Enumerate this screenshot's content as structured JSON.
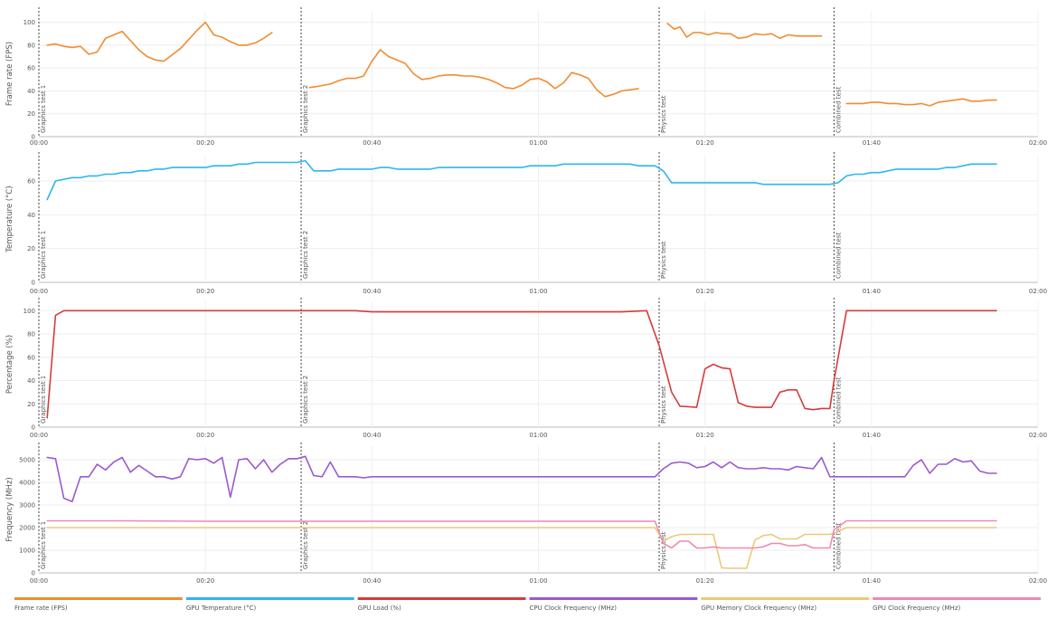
{
  "chart_data": {
    "type": "line",
    "x_axis": {
      "ticks": [
        "00:00",
        "00:20",
        "00:40",
        "01:00",
        "01:20",
        "01:40",
        "02:00"
      ],
      "range_seconds": [
        0,
        120
      ]
    },
    "markers": [
      {
        "label": "Graphics test 1",
        "t": 0
      },
      {
        "label": "Graphics test 2",
        "t": 31.5
      },
      {
        "label": "Physics test",
        "t": 74.5
      },
      {
        "label": "Combined test",
        "t": 95.5
      }
    ],
    "panels": [
      {
        "ylabel": "Frame rate (FPS)",
        "ylim": [
          0,
          110
        ],
        "yticks": [
          "0",
          "20",
          "40",
          "60",
          "80",
          "100"
        ],
        "series": [
          {
            "key": "fps",
            "color": "#f28c30",
            "x": [
              1,
              2,
              3,
              4,
              5,
              6,
              7,
              8,
              10,
              11,
              12,
              13,
              14,
              15,
              17,
              19,
              20,
              21,
              22,
              23,
              24,
              25,
              26,
              27,
              28
            ],
            "y": [
              80,
              81,
              79,
              78,
              79,
              72,
              74,
              86,
              92,
              84,
              76,
              70,
              67,
              66,
              77,
              93,
              100,
              89,
              87,
              83,
              80,
              80,
              82,
              86,
              91
            ]
          },
          {
            "key": "fps",
            "color": "#f28c30",
            "x": [
              32.5,
              33.5,
              35,
              36,
              37,
              38,
              39,
              40,
              41,
              42,
              43,
              44,
              45,
              46,
              47,
              48,
              49,
              50,
              51,
              52,
              53,
              54,
              55,
              56,
              57,
              58,
              59,
              60,
              61,
              62,
              63,
              64,
              65,
              66,
              67,
              68,
              69,
              70,
              71,
              72
            ],
            "y": [
              43,
              44,
              46,
              49,
              51,
              51,
              53,
              66,
              76,
              70,
              67,
              64,
              55,
              50,
              51,
              53,
              54,
              54,
              53,
              53,
              52,
              50,
              47,
              43,
              42,
              45,
              50,
              51,
              48,
              42,
              47,
              56,
              54,
              51,
              41,
              35,
              37,
              40,
              41,
              42
            ]
          },
          {
            "key": "fps",
            "color": "#f28c30",
            "x": [
              75.5,
              76.3,
              77,
              77.8,
              78.6,
              79.5,
              80.4,
              81.3,
              82.2,
              83.1,
              84,
              85,
              86,
              87,
              88,
              89,
              90,
              91,
              92,
              93,
              94
            ],
            "y": [
              99,
              94,
              96,
              87,
              91,
              91,
              89,
              91,
              90,
              90,
              86,
              87,
              90,
              89,
              90,
              86,
              89,
              88,
              88,
              88,
              88
            ]
          },
          {
            "key": "fps",
            "color": "#f28c30",
            "x": [
              97,
              98,
              99,
              100,
              101,
              102,
              103,
              104,
              105,
              106,
              107,
              108,
              109,
              110,
              111,
              112,
              113,
              114,
              115
            ],
            "y": [
              29,
              29,
              29,
              30,
              30,
              29,
              29,
              28,
              28,
              29,
              27,
              30,
              31,
              32,
              33,
              31,
              31,
              32,
              32
            ]
          }
        ]
      },
      {
        "ylabel": "Temperature (°C)",
        "ylim": [
          0,
          75
        ],
        "yticks": [
          "0",
          "20",
          "40",
          "60"
        ],
        "series": [
          {
            "key": "temp",
            "color": "#2bb6f2",
            "x": [
              1,
              2,
              3,
              4,
              5,
              6,
              7,
              8,
              9,
              10,
              11,
              12,
              13,
              14,
              15,
              16,
              17,
              18,
              19,
              20,
              21,
              22,
              23,
              24,
              25,
              26,
              27,
              28,
              29,
              30,
              31,
              32,
              33,
              34,
              35,
              36,
              37,
              38,
              39,
              40,
              41,
              42,
              43,
              44,
              45,
              46,
              47,
              48,
              49,
              50,
              51,
              52,
              53,
              54,
              55,
              56,
              57,
              58,
              59,
              60,
              61,
              62,
              63,
              64,
              65,
              66,
              67,
              68,
              69,
              70,
              71,
              72,
              73,
              74,
              75,
              76,
              77,
              78,
              79,
              80,
              81,
              82,
              83,
              84,
              85,
              86,
              87,
              88,
              89,
              90,
              91,
              92,
              93,
              94,
              95,
              96,
              97,
              98,
              99,
              100,
              101,
              102,
              103,
              104,
              105,
              106,
              107,
              108,
              109,
              110,
              111,
              112,
              113,
              114,
              115
            ],
            "y": [
              49,
              60,
              61,
              62,
              62,
              63,
              63,
              64,
              64,
              65,
              65,
              66,
              66,
              67,
              67,
              68,
              68,
              68,
              68,
              68,
              69,
              69,
              69,
              70,
              70,
              71,
              71,
              71,
              71,
              71,
              71,
              72,
              66,
              66,
              66,
              67,
              67,
              67,
              67,
              67,
              68,
              68,
              67,
              67,
              67,
              67,
              67,
              68,
              68,
              68,
              68,
              68,
              68,
              68,
              68,
              68,
              68,
              68,
              69,
              69,
              69,
              69,
              70,
              70,
              70,
              70,
              70,
              70,
              70,
              70,
              70,
              69,
              69,
              69,
              66,
              59,
              59,
              59,
              59,
              59,
              59,
              59,
              59,
              59,
              59,
              59,
              58,
              58,
              58,
              58,
              58,
              58,
              58,
              58,
              58,
              59,
              63,
              64,
              64,
              65,
              65,
              66,
              67,
              67,
              67,
              67,
              67,
              67,
              68,
              68,
              69,
              70,
              70,
              70,
              70
            ]
          }
        ]
      },
      {
        "ylabel": "Percentage (%)",
        "ylim": [
          0,
          108
        ],
        "yticks": [
          "0",
          "20",
          "40",
          "60",
          "80",
          "100"
        ],
        "series": [
          {
            "key": "gpu_load",
            "color": "#d63c3c",
            "x": [
              1,
              2,
              3,
              4,
              6,
              8,
              10,
              15,
              20,
              25,
              30,
              35,
              38,
              40,
              45,
              50,
              55,
              60,
              65,
              70,
              73,
              74.5,
              76,
              77,
              79,
              80,
              81,
              82,
              83,
              84,
              85,
              86,
              87,
              88,
              89,
              90,
              91,
              92,
              93,
              94,
              95,
              95.5,
              97,
              100,
              105,
              110,
              115
            ],
            "y": [
              8,
              96,
              100,
              100,
              100,
              100,
              100,
              100,
              100,
              100,
              100,
              100,
              100,
              99,
              99,
              99,
              99,
              99,
              99,
              99,
              100,
              70,
              30,
              18,
              17,
              50,
              54,
              51,
              50,
              21,
              18,
              17,
              17,
              17,
              30,
              32,
              32,
              16,
              15,
              16,
              16,
              40,
              100,
              100,
              100,
              100,
              100
            ]
          }
        ]
      },
      {
        "ylabel": "Frequency (MHz)",
        "ylim": [
          0,
          5600
        ],
        "yticks": [
          "0",
          "1000",
          "2000",
          "3000",
          "4000",
          "5000"
        ],
        "series": [
          {
            "key": "cpu_clock",
            "color": "#9b59d0",
            "x": [
              1,
              2,
              3,
              4,
              5,
              6,
              7,
              8,
              9,
              10,
              11,
              12,
              13,
              14,
              15,
              16,
              17,
              18,
              19,
              20,
              21,
              22,
              23,
              24,
              25,
              26,
              27,
              28,
              29,
              30,
              31,
              32,
              33,
              34,
              35,
              36,
              37,
              38,
              39,
              40,
              45,
              50,
              55,
              60,
              65,
              70,
              74,
              75,
              76,
              77,
              78,
              79,
              80,
              81,
              82,
              83,
              84,
              85,
              86,
              87,
              88,
              89,
              90,
              91,
              92,
              93,
              94,
              95,
              96,
              97,
              98,
              99,
              100,
              101,
              102,
              103,
              104,
              105,
              106,
              107,
              108,
              109,
              110,
              111,
              112,
              113,
              114,
              115
            ],
            "y": [
              5100,
              5050,
              3300,
              3150,
              4250,
              4250,
              4800,
              4550,
              4900,
              5100,
              4450,
              4750,
              4500,
              4250,
              4250,
              4150,
              4250,
              5050,
              5000,
              5050,
              4850,
              5100,
              3350,
              5000,
              5050,
              4600,
              5000,
              4450,
              4800,
              5050,
              5050,
              5150,
              4300,
              4250,
              4900,
              4250,
              4250,
              4250,
              4200,
              4250,
              4250,
              4250,
              4250,
              4250,
              4250,
              4250,
              4250,
              4600,
              4850,
              4900,
              4850,
              4650,
              4700,
              4900,
              4650,
              4900,
              4650,
              4600,
              4600,
              4650,
              4600,
              4600,
              4550,
              4700,
              4650,
              4600,
              5100,
              4250,
              4250,
              4250,
              4250,
              4250,
              4250,
              4250,
              4250,
              4250,
              4250,
              4750,
              5000,
              4400,
              4800,
              4800,
              5050,
              4900,
              4950,
              4500,
              4400,
              4400
            ]
          },
          {
            "key": "gpu_mem_clock",
            "color": "#ecc979",
            "x": [
              1,
              10,
              20,
              30,
              40,
              50,
              60,
              70,
              74,
              75,
              76,
              77,
              78,
              79,
              80,
              81,
              82,
              83,
              84,
              85,
              86,
              87,
              88,
              89,
              90,
              91,
              92,
              93,
              94,
              95,
              95.5,
              97,
              100,
              110,
              115
            ],
            "y": [
              2000,
              2000,
              2000,
              2000,
              2000,
              2000,
              2000,
              2000,
              2000,
              1400,
              1600,
              1700,
              1700,
              1700,
              1700,
              1700,
              220,
              200,
              200,
              200,
              1450,
              1650,
              1700,
              1500,
              1500,
              1500,
              1700,
              1700,
              1700,
              1700,
              1750,
              2000,
              2000,
              2000,
              2000
            ]
          },
          {
            "key": "gpu_clock",
            "color": "#ed8ab2",
            "x": [
              1,
              10,
              20,
              30,
              40,
              50,
              60,
              70,
              74,
              75,
              76,
              77,
              78,
              79,
              80,
              81,
              82,
              83,
              84,
              85,
              86,
              87,
              88,
              89,
              90,
              91,
              92,
              93,
              94,
              95,
              95.5,
              97,
              100,
              110,
              115
            ],
            "y": [
              2300,
              2300,
              2280,
              2280,
              2280,
              2280,
              2280,
              2280,
              2280,
              1300,
              1100,
              1400,
              1400,
              1100,
              1100,
              1150,
              1100,
              1100,
              1100,
              1100,
              1100,
              1150,
              1300,
              1300,
              1200,
              1200,
              1250,
              1100,
              1100,
              1100,
              1900,
              2300,
              2300,
              2300,
              2300
            ]
          }
        ]
      }
    ],
    "legend": [
      {
        "key": "fps",
        "label": "Frame rate (FPS)",
        "color": "#f28c30"
      },
      {
        "key": "temp",
        "label": "GPU Temperature (°C)",
        "color": "#2bb6f2"
      },
      {
        "key": "gpu_load",
        "label": "GPU Load (%)",
        "color": "#d63c3c"
      },
      {
        "key": "cpu_clock",
        "label": "CPU Clock Frequency (MHz)",
        "color": "#9b59d0"
      },
      {
        "key": "gpu_mem_clock",
        "label": "GPU Memory Clock Frequency (MHz)",
        "color": "#ecc979"
      },
      {
        "key": "gpu_clock",
        "label": "GPU Clock Frequency (MHz)",
        "color": "#ed8ab2"
      }
    ],
    "grid": true,
    "legend_position": "bottom"
  }
}
